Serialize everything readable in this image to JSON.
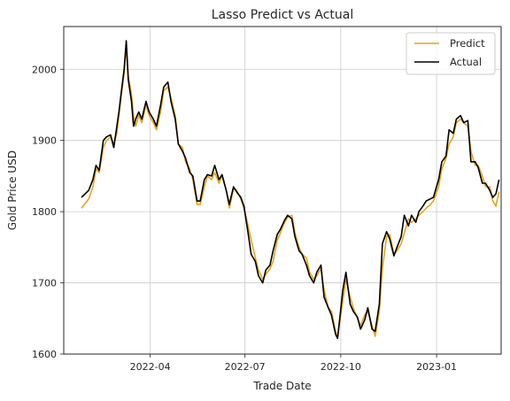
{
  "chart_data": {
    "type": "line",
    "title": "Lasso Predict vs Actual",
    "xlabel": "Trade Date",
    "ylabel": "Gold Price USD",
    "x_range": [
      "2022-01-08",
      "2023-03-04"
    ],
    "ylim": [
      1600,
      2060
    ],
    "x_ticks": [
      {
        "date": "2022-04-01",
        "label": "2022-04"
      },
      {
        "date": "2022-07-01",
        "label": "2022-07"
      },
      {
        "date": "2022-10-01",
        "label": "2022-10"
      },
      {
        "date": "2023-01-01",
        "label": "2023-01"
      }
    ],
    "y_ticks": [
      1600,
      1700,
      1800,
      1900,
      2000
    ],
    "grid": true,
    "legend": {
      "position": "top-right"
    },
    "colors": {
      "predict": "#E8A317",
      "actual": "#000000",
      "grid": "#cccccc",
      "frame": "#262626"
    },
    "series": [
      {
        "name": "Predict",
        "color_key": "predict",
        "points": [
          [
            "2022-01-25",
            1805
          ],
          [
            "2022-02-01",
            1818
          ],
          [
            "2022-02-05",
            1835
          ],
          [
            "2022-02-08",
            1860
          ],
          [
            "2022-02-11",
            1855
          ],
          [
            "2022-02-15",
            1890
          ],
          [
            "2022-02-18",
            1900
          ],
          [
            "2022-02-22",
            1905
          ],
          [
            "2022-02-25",
            1895
          ],
          [
            "2022-02-28",
            1910
          ],
          [
            "2022-03-02",
            1935
          ],
          [
            "2022-03-04",
            1960
          ],
          [
            "2022-03-07",
            1995
          ],
          [
            "2022-03-09",
            2030
          ],
          [
            "2022-03-11",
            1990
          ],
          [
            "2022-03-14",
            1965
          ],
          [
            "2022-03-16",
            1935
          ],
          [
            "2022-03-18",
            1920
          ],
          [
            "2022-03-21",
            1935
          ],
          [
            "2022-03-24",
            1925
          ],
          [
            "2022-03-28",
            1950
          ],
          [
            "2022-03-31",
            1935
          ],
          [
            "2022-04-04",
            1925
          ],
          [
            "2022-04-07",
            1915
          ],
          [
            "2022-04-11",
            1940
          ],
          [
            "2022-04-14",
            1970
          ],
          [
            "2022-04-18",
            1975
          ],
          [
            "2022-04-21",
            1960
          ],
          [
            "2022-04-25",
            1935
          ],
          [
            "2022-04-28",
            1895
          ],
          [
            "2022-05-02",
            1890
          ],
          [
            "2022-05-05",
            1870
          ],
          [
            "2022-05-09",
            1860
          ],
          [
            "2022-05-12",
            1845
          ],
          [
            "2022-05-16",
            1810
          ],
          [
            "2022-05-19",
            1810
          ],
          [
            "2022-05-23",
            1835
          ],
          [
            "2022-05-26",
            1850
          ],
          [
            "2022-05-30",
            1845
          ],
          [
            "2022-06-02",
            1855
          ],
          [
            "2022-06-06",
            1840
          ],
          [
            "2022-06-09",
            1850
          ],
          [
            "2022-06-13",
            1830
          ],
          [
            "2022-06-16",
            1805
          ],
          [
            "2022-06-20",
            1832
          ],
          [
            "2022-06-23",
            1830
          ],
          [
            "2022-06-27",
            1818
          ],
          [
            "2022-06-30",
            1805
          ],
          [
            "2022-07-04",
            1780
          ],
          [
            "2022-07-07",
            1760
          ],
          [
            "2022-07-11",
            1735
          ],
          [
            "2022-07-14",
            1718
          ],
          [
            "2022-07-18",
            1705
          ],
          [
            "2022-07-21",
            1712
          ],
          [
            "2022-07-25",
            1720
          ],
          [
            "2022-07-28",
            1730
          ],
          [
            "2022-08-01",
            1760
          ],
          [
            "2022-08-04",
            1770
          ],
          [
            "2022-08-08",
            1785
          ],
          [
            "2022-08-11",
            1792
          ],
          [
            "2022-08-15",
            1795
          ],
          [
            "2022-08-18",
            1770
          ],
          [
            "2022-08-22",
            1750
          ],
          [
            "2022-08-25",
            1740
          ],
          [
            "2022-08-29",
            1735
          ],
          [
            "2022-09-01",
            1715
          ],
          [
            "2022-09-05",
            1705
          ],
          [
            "2022-09-08",
            1710
          ],
          [
            "2022-09-12",
            1720
          ],
          [
            "2022-09-15",
            1690
          ],
          [
            "2022-09-19",
            1665
          ],
          [
            "2022-09-22",
            1660
          ],
          [
            "2022-09-26",
            1632
          ],
          [
            "2022-09-28",
            1625
          ],
          [
            "2022-10-03",
            1675
          ],
          [
            "2022-10-06",
            1705
          ],
          [
            "2022-10-10",
            1680
          ],
          [
            "2022-10-13",
            1665
          ],
          [
            "2022-10-17",
            1650
          ],
          [
            "2022-10-20",
            1640
          ],
          [
            "2022-10-24",
            1655
          ],
          [
            "2022-10-27",
            1660
          ],
          [
            "2022-10-31",
            1640
          ],
          [
            "2022-11-03",
            1625
          ],
          [
            "2022-11-07",
            1660
          ],
          [
            "2022-11-10",
            1720
          ],
          [
            "2022-11-14",
            1765
          ],
          [
            "2022-11-17",
            1768
          ],
          [
            "2022-11-21",
            1740
          ],
          [
            "2022-11-24",
            1745
          ],
          [
            "2022-11-28",
            1755
          ],
          [
            "2022-12-01",
            1770
          ],
          [
            "2022-12-05",
            1790
          ],
          [
            "2022-12-08",
            1785
          ],
          [
            "2022-12-12",
            1790
          ],
          [
            "2022-12-15",
            1795
          ],
          [
            "2022-12-19",
            1800
          ],
          [
            "2022-12-22",
            1805
          ],
          [
            "2022-12-26",
            1810
          ],
          [
            "2022-12-29",
            1815
          ],
          [
            "2023-01-03",
            1835
          ],
          [
            "2023-01-06",
            1860
          ],
          [
            "2023-01-10",
            1875
          ],
          [
            "2023-01-13",
            1895
          ],
          [
            "2023-01-17",
            1905
          ],
          [
            "2023-01-20",
            1925
          ],
          [
            "2023-01-24",
            1930
          ],
          [
            "2023-01-27",
            1925
          ],
          [
            "2023-01-31",
            1920
          ],
          [
            "2023-02-03",
            1885
          ],
          [
            "2023-02-07",
            1865
          ],
          [
            "2023-02-10",
            1865
          ],
          [
            "2023-02-14",
            1850
          ],
          [
            "2023-02-17",
            1835
          ],
          [
            "2023-02-21",
            1835
          ],
          [
            "2023-02-24",
            1815
          ],
          [
            "2023-02-27",
            1808
          ],
          [
            "2023-03-02",
            1828
          ]
        ]
      },
      {
        "name": "Actual",
        "color_key": "actual",
        "points": [
          [
            "2022-01-25",
            1820
          ],
          [
            "2022-02-01",
            1830
          ],
          [
            "2022-02-05",
            1845
          ],
          [
            "2022-02-08",
            1865
          ],
          [
            "2022-02-11",
            1858
          ],
          [
            "2022-02-15",
            1900
          ],
          [
            "2022-02-18",
            1905
          ],
          [
            "2022-02-22",
            1908
          ],
          [
            "2022-02-25",
            1890
          ],
          [
            "2022-02-28",
            1920
          ],
          [
            "2022-03-02",
            1940
          ],
          [
            "2022-03-04",
            1965
          ],
          [
            "2022-03-07",
            2000
          ],
          [
            "2022-03-09",
            2040
          ],
          [
            "2022-03-11",
            1985
          ],
          [
            "2022-03-14",
            1955
          ],
          [
            "2022-03-16",
            1920
          ],
          [
            "2022-03-18",
            1930
          ],
          [
            "2022-03-21",
            1940
          ],
          [
            "2022-03-24",
            1930
          ],
          [
            "2022-03-28",
            1955
          ],
          [
            "2022-03-31",
            1940
          ],
          [
            "2022-04-04",
            1930
          ],
          [
            "2022-04-07",
            1920
          ],
          [
            "2022-04-11",
            1950
          ],
          [
            "2022-04-14",
            1975
          ],
          [
            "2022-04-18",
            1982
          ],
          [
            "2022-04-21",
            1955
          ],
          [
            "2022-04-25",
            1930
          ],
          [
            "2022-04-28",
            1895
          ],
          [
            "2022-05-02",
            1885
          ],
          [
            "2022-05-05",
            1875
          ],
          [
            "2022-05-09",
            1855
          ],
          [
            "2022-05-12",
            1850
          ],
          [
            "2022-05-16",
            1815
          ],
          [
            "2022-05-19",
            1815
          ],
          [
            "2022-05-23",
            1845
          ],
          [
            "2022-05-26",
            1852
          ],
          [
            "2022-05-30",
            1850
          ],
          [
            "2022-06-02",
            1865
          ],
          [
            "2022-06-06",
            1845
          ],
          [
            "2022-06-09",
            1852
          ],
          [
            "2022-06-13",
            1830
          ],
          [
            "2022-06-16",
            1810
          ],
          [
            "2022-06-20",
            1835
          ],
          [
            "2022-06-23",
            1828
          ],
          [
            "2022-06-27",
            1820
          ],
          [
            "2022-06-30",
            1808
          ],
          [
            "2022-07-04",
            1770
          ],
          [
            "2022-07-07",
            1740
          ],
          [
            "2022-07-11",
            1730
          ],
          [
            "2022-07-14",
            1710
          ],
          [
            "2022-07-18",
            1700
          ],
          [
            "2022-07-21",
            1718
          ],
          [
            "2022-07-25",
            1725
          ],
          [
            "2022-07-28",
            1745
          ],
          [
            "2022-08-01",
            1768
          ],
          [
            "2022-08-04",
            1775
          ],
          [
            "2022-08-08",
            1788
          ],
          [
            "2022-08-11",
            1795
          ],
          [
            "2022-08-15",
            1790
          ],
          [
            "2022-08-18",
            1765
          ],
          [
            "2022-08-22",
            1745
          ],
          [
            "2022-08-25",
            1740
          ],
          [
            "2022-08-29",
            1725
          ],
          [
            "2022-09-01",
            1710
          ],
          [
            "2022-09-05",
            1700
          ],
          [
            "2022-09-08",
            1715
          ],
          [
            "2022-09-12",
            1725
          ],
          [
            "2022-09-15",
            1680
          ],
          [
            "2022-09-19",
            1665
          ],
          [
            "2022-09-22",
            1655
          ],
          [
            "2022-09-26",
            1628
          ],
          [
            "2022-09-28",
            1622
          ],
          [
            "2022-10-03",
            1690
          ],
          [
            "2022-10-06",
            1715
          ],
          [
            "2022-10-10",
            1670
          ],
          [
            "2022-10-13",
            1660
          ],
          [
            "2022-10-17",
            1652
          ],
          [
            "2022-10-20",
            1635
          ],
          [
            "2022-10-24",
            1648
          ],
          [
            "2022-10-27",
            1665
          ],
          [
            "2022-10-31",
            1635
          ],
          [
            "2022-11-03",
            1632
          ],
          [
            "2022-11-07",
            1670
          ],
          [
            "2022-11-10",
            1755
          ],
          [
            "2022-11-14",
            1772
          ],
          [
            "2022-11-17",
            1762
          ],
          [
            "2022-11-21",
            1738
          ],
          [
            "2022-11-24",
            1750
          ],
          [
            "2022-11-28",
            1765
          ],
          [
            "2022-12-01",
            1795
          ],
          [
            "2022-12-05",
            1780
          ],
          [
            "2022-12-08",
            1795
          ],
          [
            "2022-12-12",
            1785
          ],
          [
            "2022-12-15",
            1800
          ],
          [
            "2022-12-19",
            1808
          ],
          [
            "2022-12-22",
            1815
          ],
          [
            "2022-12-26",
            1818
          ],
          [
            "2022-12-29",
            1820
          ],
          [
            "2023-01-03",
            1845
          ],
          [
            "2023-01-06",
            1870
          ],
          [
            "2023-01-10",
            1878
          ],
          [
            "2023-01-13",
            1915
          ],
          [
            "2023-01-17",
            1910
          ],
          [
            "2023-01-20",
            1930
          ],
          [
            "2023-01-24",
            1935
          ],
          [
            "2023-01-27",
            1925
          ],
          [
            "2023-01-31",
            1928
          ],
          [
            "2023-02-03",
            1870
          ],
          [
            "2023-02-07",
            1870
          ],
          [
            "2023-02-10",
            1862
          ],
          [
            "2023-02-14",
            1840
          ],
          [
            "2023-02-17",
            1840
          ],
          [
            "2023-02-21",
            1830
          ],
          [
            "2023-02-24",
            1820
          ],
          [
            "2023-02-27",
            1825
          ],
          [
            "2023-03-02",
            1845
          ]
        ]
      }
    ]
  }
}
